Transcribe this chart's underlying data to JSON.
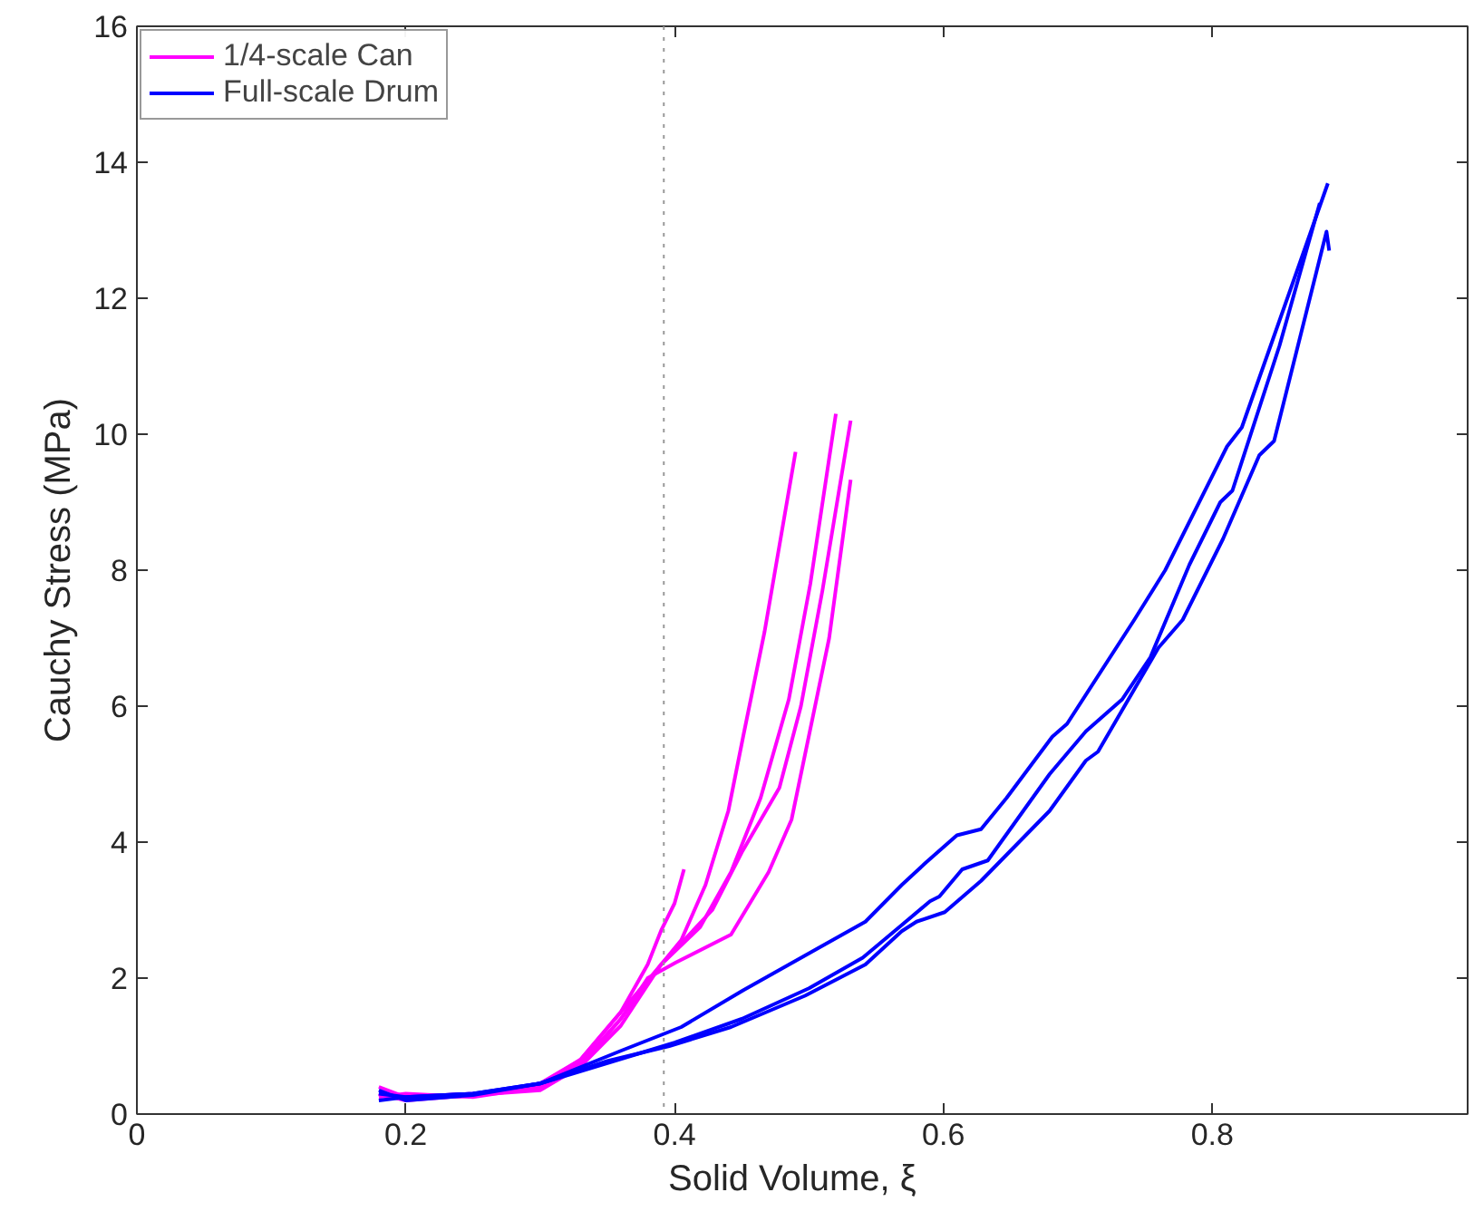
{
  "chart_data": {
    "type": "line",
    "xlabel": "Solid Volume,   ξ",
    "ylabel": "Cauchy Stress (MPa)",
    "xlim": [
      0,
      0.99
    ],
    "ylim": [
      0,
      16
    ],
    "xticks": [
      0,
      0.2,
      0.4,
      0.6,
      0.8
    ],
    "yticks": [
      0,
      2,
      4,
      6,
      8,
      10,
      12,
      14,
      16
    ],
    "grid": false,
    "legend": "top left",
    "line_style": "solid",
    "marker": "none",
    "ref_lines": [
      {
        "axis": "x",
        "value": 0.392,
        "color": "#999999",
        "line_style": "dotted"
      }
    ],
    "series": [
      {
        "name": "1/4-scale Can",
        "color": "#ff00ff",
        "x": [
          0.18,
          0.2,
          0.25,
          0.3,
          0.33,
          0.36,
          0.38,
          0.39,
          0.4,
          0.407
        ],
        "values": [
          0.4,
          0.25,
          0.28,
          0.4,
          0.8,
          1.5,
          2.2,
          2.7,
          3.1,
          3.6
        ]
      },
      {
        "color": "#ff00ff",
        "x": [
          0.18,
          0.2,
          0.25,
          0.3,
          0.33,
          0.36,
          0.39,
          0.405,
          0.423,
          0.44,
          0.451,
          0.467,
          0.49
        ],
        "values": [
          0.3,
          0.22,
          0.27,
          0.45,
          0.8,
          1.5,
          2.2,
          2.56,
          3.37,
          4.46,
          5.55,
          7.1,
          9.74
        ]
      },
      {
        "color": "#ff00ff",
        "x": [
          0.18,
          0.2,
          0.25,
          0.3,
          0.33,
          0.36,
          0.39,
          0.419,
          0.442,
          0.464,
          0.485,
          0.501,
          0.52
        ],
        "values": [
          0.25,
          0.3,
          0.25,
          0.4,
          0.75,
          1.4,
          2.2,
          2.75,
          3.56,
          4.65,
          6.1,
          7.8,
          10.3
        ]
      },
      {
        "color": "#ff00ff",
        "x": [
          0.18,
          0.2,
          0.25,
          0.3,
          0.33,
          0.36,
          0.39,
          0.428,
          0.45,
          0.478,
          0.494,
          0.51,
          0.531
        ],
        "values": [
          0.3,
          0.25,
          0.3,
          0.38,
          0.7,
          1.3,
          2.2,
          3.0,
          3.85,
          4.8,
          6.0,
          7.7,
          10.2
        ]
      },
      {
        "color": "#ff00ff",
        "x": [
          0.18,
          0.2,
          0.25,
          0.3,
          0.33,
          0.36,
          0.38,
          0.401,
          0.442,
          0.47,
          0.487,
          0.515,
          0.531
        ],
        "values": [
          0.3,
          0.2,
          0.28,
          0.35,
          0.7,
          1.4,
          2.0,
          2.23,
          2.64,
          3.56,
          4.33,
          7.0,
          9.33
        ]
      },
      {
        "name": "Full-scale Drum",
        "color": "#0000ff",
        "x": [
          0.18,
          0.2,
          0.25,
          0.3,
          0.36,
          0.405,
          0.451,
          0.505,
          0.542,
          0.569,
          0.587,
          0.61,
          0.628,
          0.647,
          0.681,
          0.692,
          0.742,
          0.765,
          0.811,
          0.822,
          0.886
        ],
        "values": [
          0.3,
          0.25,
          0.3,
          0.45,
          0.93,
          1.28,
          1.82,
          2.42,
          2.83,
          3.37,
          3.7,
          4.1,
          4.19,
          4.65,
          5.55,
          5.74,
          7.27,
          8.0,
          9.82,
          10.1,
          13.69
        ]
      },
      {
        "color": "#0000ff",
        "x": [
          0.18,
          0.2,
          0.25,
          0.3,
          0.35,
          0.396,
          0.442,
          0.497,
          0.542,
          0.569,
          0.58,
          0.601,
          0.628,
          0.679,
          0.706,
          0.715,
          0.76,
          0.778,
          0.808,
          0.835,
          0.846,
          0.885,
          0.887
        ],
        "values": [
          0.35,
          0.2,
          0.28,
          0.45,
          0.78,
          1.0,
          1.28,
          1.74,
          2.2,
          2.69,
          2.83,
          2.97,
          3.43,
          4.46,
          5.2,
          5.33,
          6.86,
          7.27,
          8.46,
          9.69,
          9.9,
          12.98,
          12.7
        ]
      },
      {
        "color": "#0000ff",
        "x": [
          0.18,
          0.2,
          0.25,
          0.3,
          0.35,
          0.4,
          0.45,
          0.5,
          0.54,
          0.569,
          0.59,
          0.597,
          0.614,
          0.633,
          0.679,
          0.706,
          0.733,
          0.754,
          0.783,
          0.806,
          0.815,
          0.85,
          0.88
        ],
        "values": [
          0.2,
          0.25,
          0.3,
          0.45,
          0.75,
          1.05,
          1.4,
          1.85,
          2.3,
          2.78,
          3.13,
          3.2,
          3.6,
          3.73,
          5.0,
          5.63,
          6.1,
          6.72,
          8.08,
          9.0,
          9.17,
          11.3,
          13.4
        ]
      }
    ]
  }
}
